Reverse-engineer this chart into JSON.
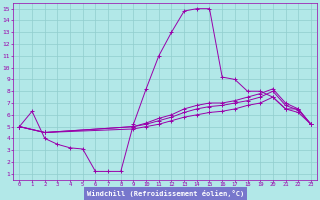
{
  "xlabel": "Windchill (Refroidissement éolien,°C)",
  "bg_color": "#b2e8e8",
  "plot_bg_color": "#b2e8e8",
  "grid_color": "#90cece",
  "line_color": "#9900aa",
  "xlabel_bg": "#7777cc",
  "xlabel_fg": "#ffffff",
  "spine_color": "#9900aa",
  "tick_color": "#9900aa",
  "xlim": [
    -0.5,
    23.5
  ],
  "ylim": [
    0.5,
    15.5
  ],
  "xticks": [
    0,
    1,
    2,
    3,
    4,
    5,
    6,
    7,
    8,
    9,
    10,
    11,
    12,
    13,
    14,
    15,
    16,
    17,
    18,
    19,
    20,
    21,
    22,
    23
  ],
  "yticks": [
    1,
    2,
    3,
    4,
    5,
    6,
    7,
    8,
    9,
    10,
    11,
    12,
    13,
    14,
    15
  ],
  "lines": [
    {
      "x": [
        0,
        1,
        2,
        3,
        4,
        5,
        6,
        7,
        8,
        9,
        10,
        11,
        12,
        13,
        14,
        15,
        16,
        17,
        18,
        19,
        20,
        21,
        22,
        23
      ],
      "y": [
        5.0,
        6.3,
        4.0,
        3.5,
        3.2,
        3.1,
        1.2,
        1.2,
        1.2,
        5.2,
        8.2,
        11.0,
        13.0,
        14.8,
        15.0,
        15.0,
        9.2,
        9.0,
        8.0,
        8.0,
        7.5,
        6.5,
        6.5,
        5.2
      ]
    },
    {
      "x": [
        0,
        2,
        9,
        10,
        11,
        12,
        13,
        14,
        15,
        16,
        17,
        18,
        19,
        20,
        21,
        22,
        23
      ],
      "y": [
        5.0,
        4.5,
        5.0,
        5.3,
        5.7,
        6.0,
        6.5,
        6.8,
        7.0,
        7.0,
        7.2,
        7.5,
        7.8,
        8.2,
        7.0,
        6.5,
        5.2
      ]
    },
    {
      "x": [
        0,
        2,
        9,
        10,
        11,
        12,
        13,
        14,
        15,
        16,
        17,
        18,
        19,
        20,
        21,
        22,
        23
      ],
      "y": [
        5.0,
        4.5,
        5.0,
        5.2,
        5.5,
        5.8,
        6.2,
        6.5,
        6.7,
        6.8,
        7.0,
        7.2,
        7.5,
        8.0,
        6.8,
        6.4,
        5.2
      ]
    },
    {
      "x": [
        0,
        2,
        9,
        10,
        11,
        12,
        13,
        14,
        15,
        16,
        17,
        18,
        19,
        20,
        21,
        22,
        23
      ],
      "y": [
        5.0,
        4.5,
        4.8,
        5.0,
        5.2,
        5.5,
        5.8,
        6.0,
        6.2,
        6.3,
        6.5,
        6.8,
        7.0,
        7.5,
        6.5,
        6.2,
        5.2
      ]
    }
  ],
  "figsize": [
    3.2,
    2.0
  ],
  "dpi": 100
}
